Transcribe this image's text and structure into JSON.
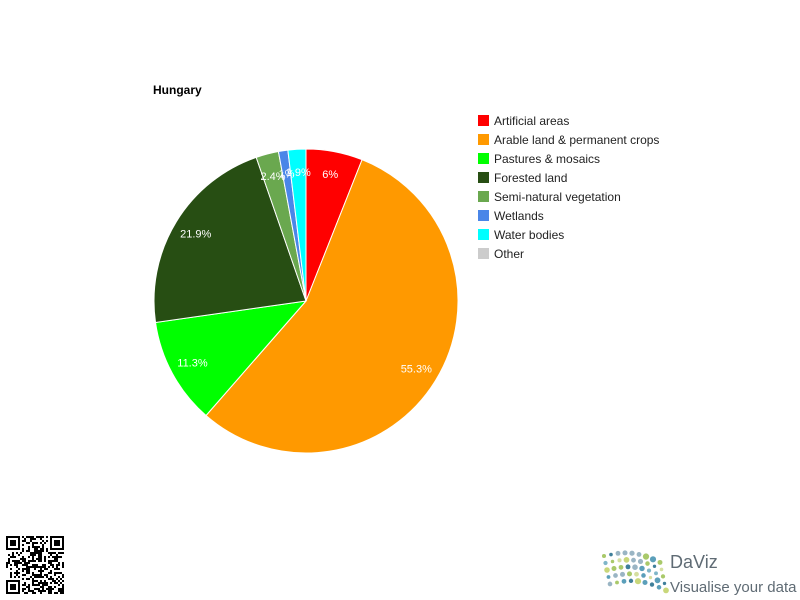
{
  "chart_data": {
    "type": "pie",
    "title": "Hungary",
    "categories": [
      "Artificial areas",
      "Arable land & permanent crops",
      "Pastures & mosaics",
      "Forested land",
      "Semi-natural vegetation",
      "Wetlands",
      "Water bodies",
      "Other"
    ],
    "values": [
      6.0,
      55.3,
      11.3,
      21.9,
      2.4,
      1.0,
      1.9,
      0.0
    ],
    "slice_labels": [
      "6%",
      "55.3%",
      "11.3%",
      "21.9%",
      "2.4%",
      "1%",
      "1.9%",
      ""
    ],
    "colors": [
      "#ff0000",
      "#ff9900",
      "#00ff00",
      "#274e13",
      "#6aa84f",
      "#4a86e8",
      "#00ffff",
      "#cccccc"
    ],
    "legend_position": "right",
    "start_angle": "top",
    "direction": "clockwise"
  },
  "branding": {
    "name": "DaViz",
    "tagline": "Visualise your data"
  },
  "icons": {
    "qr": "qr-code-icon",
    "logo": "daviz-logo-icon"
  }
}
